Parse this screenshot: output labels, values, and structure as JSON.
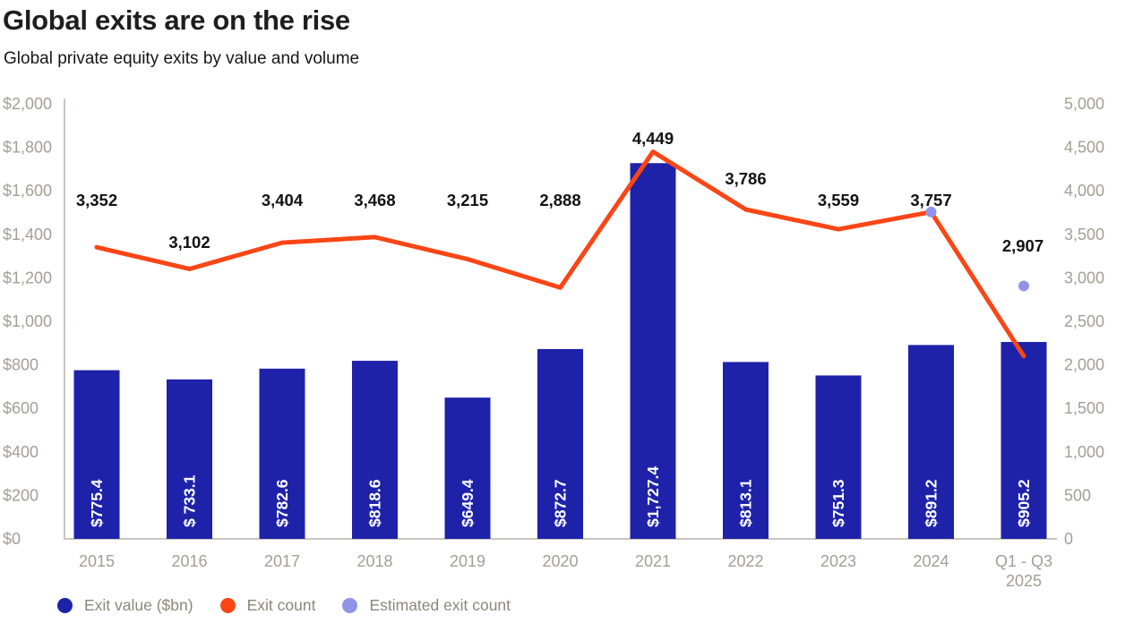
{
  "header": {
    "title": "Global exits are on the rise",
    "subtitle": "Global private equity exits by value and volume"
  },
  "colors": {
    "bar_navy": "#1E22A9",
    "line_orange": "#FA4616",
    "estimated_periwinkle": "#8F94E8",
    "axis_text": "#A49E94",
    "axis_line": "#C9C5BF",
    "data_label_text": "#121212",
    "bar_label_text": "#FFFFFF",
    "legend_text": "#8C8779",
    "title_text": "#1E1E1E"
  },
  "chart_data": {
    "type": "combo",
    "title": "Global exits are on the rise",
    "subtitle": "Global private equity exits by value and volume",
    "grid": "off",
    "legend_position": "bottom-left",
    "categories": [
      "2015",
      "2016",
      "2017",
      "2018",
      "2019",
      "2020",
      "2021",
      "2022",
      "2023",
      "2024",
      "Q1 - Q3\n2025"
    ],
    "series": [
      {
        "name": "Exit value ($bn)",
        "type": "bar",
        "axis": "left",
        "color": "#1E22A9",
        "values": [
          775.4,
          733.1,
          782.6,
          818.6,
          649.4,
          872.7,
          1727.4,
          813.1,
          751.3,
          891.2,
          905.2
        ],
        "labels": [
          "$775.4",
          "$ 733.1",
          "$782.6",
          "$818.6",
          "$649.4",
          "$872.7",
          "$1,727.4",
          "$813.1",
          "$751.3",
          "$891.2",
          "$905.2"
        ]
      },
      {
        "name": "Exit count",
        "type": "line",
        "axis": "right",
        "color": "#FA4616",
        "values": [
          3352,
          3102,
          3404,
          3468,
          3215,
          2888,
          4449,
          3786,
          3559,
          3757,
          2100
        ],
        "labels": [
          "3,352",
          "3,102",
          "3,404",
          "3,468",
          "3,215",
          "2,888",
          "4,449",
          "3,786",
          "3,559",
          "3,757",
          ""
        ],
        "note": "final point (Q1 - Q3 2025) has no data label in the chart; ~2,100 read off right axis"
      },
      {
        "name": "Estimated exit count",
        "type": "scatter",
        "axis": "right",
        "color": "#8F94E8",
        "points": [
          {
            "category": "2024",
            "value": 3757,
            "label": ""
          },
          {
            "category": "Q1 - Q3\n2025",
            "value": 2907,
            "label": "2,907"
          }
        ]
      }
    ],
    "left_axis": {
      "min": 0,
      "max": 2000,
      "ticks": [
        {
          "value": 2000,
          "label": "$2,000"
        },
        {
          "value": 1800,
          "label": "$1,800"
        },
        {
          "value": 1600,
          "label": "$1,600"
        },
        {
          "value": 1400,
          "label": "$1,400"
        },
        {
          "value": 1200,
          "label": "$1,200"
        },
        {
          "value": 1000,
          "label": "$1,000"
        },
        {
          "value": 800,
          "label": "$800"
        },
        {
          "value": 600,
          "label": "$600"
        },
        {
          "value": 400,
          "label": "$400"
        },
        {
          "value": 200,
          "label": "$200"
        },
        {
          "value": 0,
          "label": "$0"
        }
      ]
    },
    "right_axis": {
      "min": 0,
      "max": 5000,
      "ticks": [
        {
          "value": 5000,
          "label": "5,000"
        },
        {
          "value": 4500,
          "label": "4,500"
        },
        {
          "value": 4000,
          "label": "4,000"
        },
        {
          "value": 3500,
          "label": "3,500"
        },
        {
          "value": 3000,
          "label": "3,000"
        },
        {
          "value": 2500,
          "label": "2,500"
        },
        {
          "value": 2000,
          "label": "2,000"
        },
        {
          "value": 1500,
          "label": "1,500"
        },
        {
          "value": 1000,
          "label": "1,000"
        },
        {
          "value": 500,
          "label": "500"
        },
        {
          "value": 0,
          "label": "0"
        }
      ]
    }
  },
  "legend": {
    "items": [
      {
        "label": "Exit value ($bn)",
        "color": "#1E22A9",
        "marker": "circle"
      },
      {
        "label": "Exit count",
        "color": "#FA4616",
        "marker": "circle"
      },
      {
        "label": "Estimated exit count",
        "color": "#8F94E8",
        "marker": "circle"
      }
    ]
  }
}
